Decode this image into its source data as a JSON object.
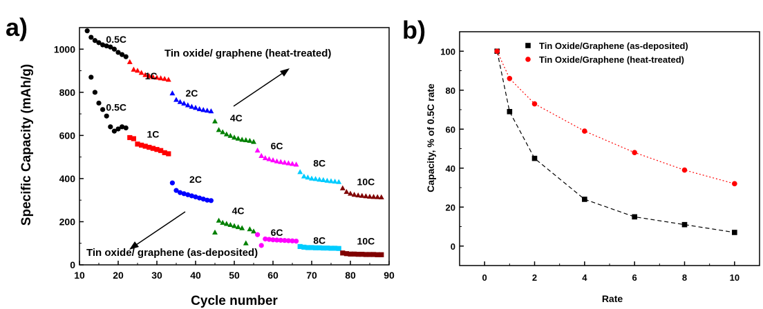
{
  "panel_a": {
    "label": "a)",
    "chart_data": {
      "type": "scatter",
      "xlabel": "Cycle number",
      "ylabel": "Specific Capacity (mAh/g)",
      "xlim": [
        10,
        90
      ],
      "ylim": [
        0,
        1100
      ],
      "xticks": [
        10,
        20,
        30,
        40,
        50,
        60,
        70,
        80,
        90
      ],
      "yticks": [
        0,
        200,
        400,
        600,
        800,
        1000
      ],
      "annotations": {
        "heat_treated": "Tin oxide/ graphene (heat-treated)",
        "as_deposited": "Tin oxide/ graphene (as-deposited)"
      },
      "segments_heat_treated": [
        {
          "rate": "0.5C",
          "color": "#000000",
          "marker": "circle",
          "x": [
            12,
            13,
            14,
            15,
            16,
            17,
            18,
            19,
            20,
            21,
            22
          ],
          "y": [
            1085,
            1055,
            1040,
            1030,
            1020,
            1015,
            1010,
            1000,
            985,
            975,
            965
          ]
        },
        {
          "rate": "1C",
          "color": "#ff0000",
          "marker": "triangle",
          "x": [
            23,
            24,
            25,
            26,
            27,
            28,
            29,
            30,
            31,
            32,
            33
          ],
          "y": [
            940,
            905,
            900,
            890,
            880,
            875,
            870,
            868,
            865,
            862,
            858
          ]
        },
        {
          "rate": "2C",
          "color": "#0000ff",
          "marker": "triangle",
          "x": [
            34,
            35,
            36,
            37,
            38,
            39,
            40,
            41,
            42,
            43,
            44
          ],
          "y": [
            795,
            765,
            755,
            748,
            740,
            733,
            728,
            722,
            718,
            715,
            712
          ]
        },
        {
          "rate": "4C",
          "color": "#008000",
          "marker": "triangle",
          "x": [
            45,
            46,
            47,
            48,
            49,
            50,
            51,
            52,
            53,
            54,
            55
          ],
          "y": [
            665,
            625,
            615,
            605,
            598,
            590,
            585,
            580,
            578,
            575,
            570
          ]
        },
        {
          "rate": "6C",
          "color": "#ff00ff",
          "marker": "triangle",
          "x": [
            56,
            57,
            58,
            59,
            60,
            61,
            62,
            63,
            64,
            65,
            66
          ],
          "y": [
            530,
            505,
            495,
            490,
            485,
            480,
            477,
            474,
            471,
            468,
            465
          ]
        },
        {
          "rate": "8C",
          "color": "#00ccff",
          "marker": "triangle",
          "x": [
            67,
            68,
            69,
            70,
            71,
            72,
            73,
            74,
            75,
            76,
            77
          ],
          "y": [
            430,
            410,
            405,
            400,
            398,
            395,
            393,
            390,
            388,
            386,
            384
          ]
        },
        {
          "rate": "10C",
          "color": "#800000",
          "marker": "triangle",
          "x": [
            78,
            79,
            80,
            81,
            82,
            83,
            84,
            85,
            86,
            87,
            88
          ],
          "y": [
            355,
            338,
            330,
            325,
            322,
            320,
            318,
            316,
            315,
            314,
            313
          ]
        }
      ],
      "segments_as_deposited": [
        {
          "rate": "0.5C",
          "color": "#000000",
          "marker": "circle",
          "x": [
            13,
            14,
            15,
            16,
            17,
            18,
            19,
            20,
            21,
            22
          ],
          "y": [
            870,
            800,
            750,
            720,
            690,
            640,
            620,
            630,
            640,
            635
          ]
        },
        {
          "rate": "1C",
          "color": "#ff0000",
          "marker": "square",
          "x": [
            23,
            24,
            25,
            26,
            27,
            28,
            29,
            30,
            31,
            32,
            33
          ],
          "y": [
            590,
            585,
            560,
            555,
            550,
            545,
            540,
            535,
            530,
            520,
            515
          ]
        },
        {
          "rate": "2C",
          "color": "#0000ff",
          "marker": "circle",
          "x": [
            34,
            35,
            36,
            37,
            38,
            39,
            40,
            41,
            42,
            43,
            44
          ],
          "y": [
            380,
            345,
            335,
            330,
            325,
            320,
            315,
            310,
            305,
            300,
            298
          ]
        },
        {
          "rate": "4C",
          "color": "#008000",
          "marker": "triangle",
          "x": [
            45,
            46,
            47,
            48,
            49,
            50,
            51,
            52,
            53,
            54,
            55
          ],
          "y": [
            150,
            205,
            195,
            190,
            185,
            180,
            175,
            170,
            100,
            165,
            155
          ]
        },
        {
          "rate": "6C",
          "color": "#ff00ff",
          "marker": "circle",
          "x": [
            56,
            57,
            58,
            59,
            60,
            61,
            62,
            63,
            64,
            65,
            66
          ],
          "y": [
            140,
            90,
            120,
            118,
            116,
            115,
            114,
            113,
            112,
            111,
            110
          ]
        },
        {
          "rate": "8C",
          "color": "#00ccff",
          "marker": "square",
          "x": [
            67,
            68,
            69,
            70,
            71,
            72,
            73,
            74,
            75,
            76,
            77
          ],
          "y": [
            85,
            82,
            80,
            80,
            79,
            79,
            78,
            78,
            77,
            77,
            76
          ]
        },
        {
          "rate": "10C",
          "color": "#800000",
          "marker": "square",
          "x": [
            78,
            79,
            80,
            81,
            82,
            83,
            84,
            85,
            86,
            87,
            88
          ],
          "y": [
            55,
            52,
            50,
            50,
            49,
            49,
            48,
            48,
            48,
            47,
            47
          ]
        }
      ],
      "rate_labels": [
        {
          "text": "0.5C",
          "x": 19.5,
          "y": 1030
        },
        {
          "text": "1C",
          "x": 28.5,
          "y": 860
        },
        {
          "text": "2C",
          "x": 39,
          "y": 780
        },
        {
          "text": "4C",
          "x": 50.5,
          "y": 665
        },
        {
          "text": "6C",
          "x": 61,
          "y": 535
        },
        {
          "text": "8C",
          "x": 72,
          "y": 455
        },
        {
          "text": "10C",
          "x": 84,
          "y": 370
        },
        {
          "text": "0.5C",
          "x": 19.5,
          "y": 715
        },
        {
          "text": "1C",
          "x": 29,
          "y": 590
        },
        {
          "text": "2C",
          "x": 40,
          "y": 380
        },
        {
          "text": "4C",
          "x": 51,
          "y": 235
        },
        {
          "text": "6C",
          "x": 61,
          "y": 135
        },
        {
          "text": "8C",
          "x": 72,
          "y": 97
        },
        {
          "text": "10C",
          "x": 84,
          "y": 95
        }
      ]
    }
  },
  "panel_b": {
    "label": "b)",
    "chart_data": {
      "type": "line",
      "xlabel": "Rate",
      "ylabel": "Capacity, % of 0.5C rate",
      "xlim": [
        -1,
        11
      ],
      "ylim": [
        -10,
        110
      ],
      "xticks": [
        0,
        2,
        4,
        6,
        8,
        10
      ],
      "yticks": [
        0,
        20,
        40,
        60,
        80,
        100
      ],
      "legend_position": "top-right",
      "series": [
        {
          "name": "Tin Oxide/Graphene (as-deposited)",
          "color": "#000000",
          "marker": "square",
          "dash": "6,4",
          "x": [
            0.5,
            1,
            2,
            4,
            6,
            8,
            10
          ],
          "y": [
            100,
            69,
            45,
            24,
            15,
            11,
            7
          ]
        },
        {
          "name": "Tin Oxide/Graphene (heat-treated)",
          "color": "#ff0000",
          "marker": "circle",
          "dash": "2,3",
          "x": [
            0.5,
            1,
            2,
            4,
            6,
            8,
            10
          ],
          "y": [
            100,
            86,
            73,
            59,
            48,
            39,
            32
          ]
        }
      ]
    }
  }
}
